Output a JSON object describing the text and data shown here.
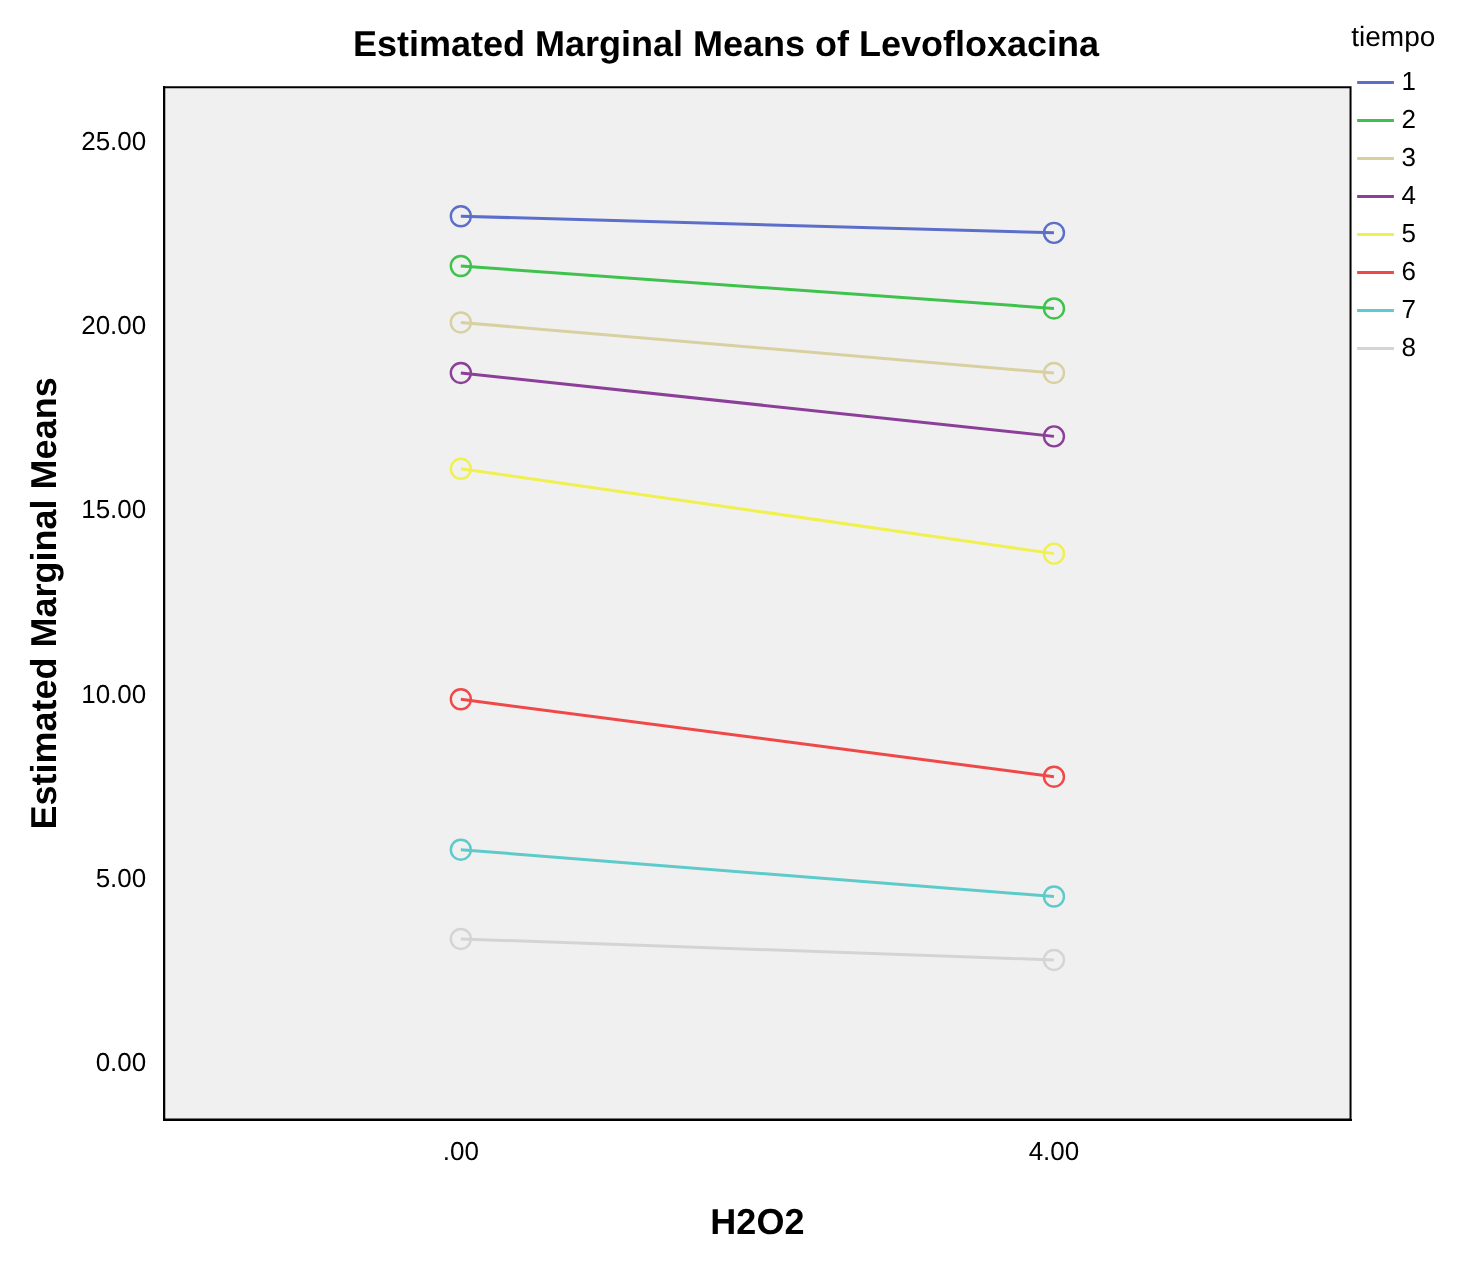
{
  "chart_data": {
    "type": "line",
    "title": "Estimated Marginal Means of Levofloxacina",
    "xlabel": "H2O2",
    "ylabel": "Estimated Marginal Means",
    "legend_title": "tiempo",
    "categories": [
      ".00",
      "4.00"
    ],
    "series": [
      {
        "name": "1",
        "color": "#5b6fca",
        "values": [
          23.0,
          22.55
        ]
      },
      {
        "name": "2",
        "color": "#3ec24b",
        "values": [
          21.65,
          20.5
        ]
      },
      {
        "name": "3",
        "color": "#d9d0a2",
        "values": [
          20.12,
          18.75
        ]
      },
      {
        "name": "4",
        "color": "#8c3f98",
        "values": [
          18.75,
          17.03
        ]
      },
      {
        "name": "5",
        "color": "#f0f04e",
        "values": [
          16.15,
          13.85
        ]
      },
      {
        "name": "6",
        "color": "#f04848",
        "values": [
          9.9,
          7.8
        ]
      },
      {
        "name": "7",
        "color": "#5ecaca",
        "values": [
          5.82,
          4.55
        ]
      },
      {
        "name": "8",
        "color": "#d4d4d4",
        "values": [
          3.4,
          2.83
        ]
      }
    ],
    "ylim": [
      -1.5,
      26.5
    ],
    "yticks": [
      {
        "value": 0,
        "label": "0.00"
      },
      {
        "value": 5,
        "label": "5.00"
      },
      {
        "value": 10,
        "label": "10.00"
      },
      {
        "value": 15,
        "label": "15.00"
      },
      {
        "value": 20,
        "label": "20.00"
      },
      {
        "value": 25,
        "label": "25.00"
      }
    ],
    "grid": false,
    "legend": "top right",
    "marker": "circle",
    "line_style": "solid"
  }
}
